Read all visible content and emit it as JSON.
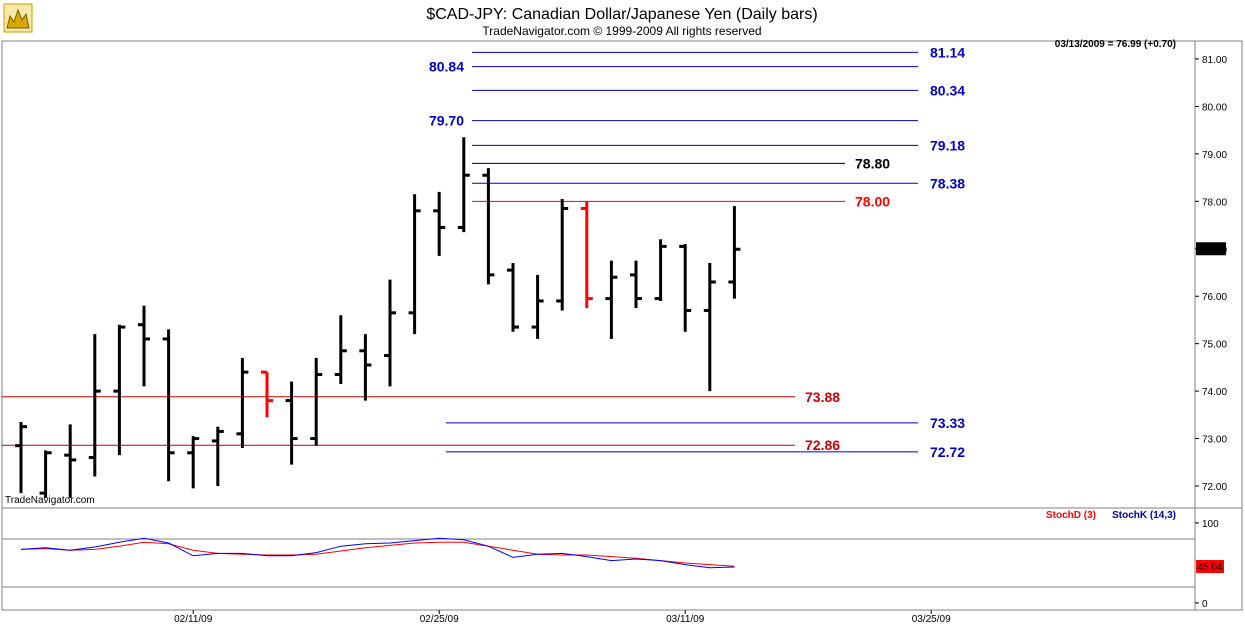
{
  "header": {
    "title": "$CAD-JPY:  Canadian Dollar/Japanese Yen  (Daily bars)",
    "copyright": "TradeNavigator.com © 1999-2009 All rights reserved",
    "last_quote": "03/13/2009 = 76.99 (+0.70)",
    "watermark": "TradeNavigator.com",
    "current_price_label": "76.99"
  },
  "colors": {
    "bar": "#000000",
    "bar_highlight": "#ff0000",
    "level_blue": "#0000cc",
    "level_red": "#cc0000",
    "level_black": "#000000",
    "stoch_d": "#ff0000",
    "stoch_k": "#0000ff"
  },
  "chart_data": [
    {
      "type": "ohlc",
      "title": "$CAD-JPY:  Canadian Dollar/Japanese Yen  (Daily bars)",
      "ylim": [
        71.6,
        81.4
      ],
      "y_ticks": [
        72.0,
        73.0,
        74.0,
        75.0,
        76.0,
        77.0,
        78.0,
        79.0,
        80.0,
        81.0
      ],
      "x_ticks": [
        "02/11/09",
        "02/25/09",
        "03/11/09",
        "03/25/09"
      ],
      "x_tick_index": [
        7,
        17,
        27,
        37
      ],
      "bars": [
        {
          "o": 72.85,
          "h": 73.35,
          "l": 71.85,
          "c": 73.25
        },
        {
          "o": 71.85,
          "h": 72.75,
          "l": 71.75,
          "c": 72.7
        },
        {
          "o": 72.65,
          "h": 73.3,
          "l": 71.75,
          "c": 72.55
        },
        {
          "o": 72.6,
          "h": 75.2,
          "l": 72.2,
          "c": 74.0
        },
        {
          "o": 74.0,
          "h": 75.4,
          "l": 72.65,
          "c": 75.35
        },
        {
          "o": 75.4,
          "h": 75.8,
          "l": 74.1,
          "c": 75.1
        },
        {
          "o": 75.1,
          "h": 75.3,
          "l": 72.1,
          "c": 72.7
        },
        {
          "o": 72.7,
          "h": 73.05,
          "l": 71.95,
          "c": 73.0
        },
        {
          "o": 72.95,
          "h": 73.25,
          "l": 72.0,
          "c": 73.15
        },
        {
          "o": 73.1,
          "h": 74.7,
          "l": 72.8,
          "c": 74.4,
          "highlight": false
        },
        {
          "o": 74.4,
          "h": 74.4,
          "l": 73.45,
          "c": 73.8,
          "highlight": true
        },
        {
          "o": 73.8,
          "h": 74.2,
          "l": 72.45,
          "c": 73.0
        },
        {
          "o": 73.0,
          "h": 74.7,
          "l": 72.85,
          "c": 74.35
        },
        {
          "o": 74.35,
          "h": 75.6,
          "l": 74.15,
          "c": 74.85
        },
        {
          "o": 74.85,
          "h": 75.2,
          "l": 73.8,
          "c": 74.55
        },
        {
          "o": 74.75,
          "h": 76.35,
          "l": 74.1,
          "c": 75.65
        },
        {
          "o": 75.65,
          "h": 78.15,
          "l": 75.2,
          "c": 77.8
        },
        {
          "o": 77.8,
          "h": 78.2,
          "l": 76.85,
          "c": 77.45
        },
        {
          "o": 77.45,
          "h": 79.35,
          "l": 77.35,
          "c": 78.55
        },
        {
          "o": 78.55,
          "h": 78.7,
          "l": 76.25,
          "c": 76.45
        },
        {
          "o": 76.55,
          "h": 76.7,
          "l": 75.25,
          "c": 75.35
        },
        {
          "o": 75.35,
          "h": 76.45,
          "l": 75.1,
          "c": 75.9
        },
        {
          "o": 75.9,
          "h": 78.05,
          "l": 75.7,
          "c": 77.85
        },
        {
          "o": 77.85,
          "h": 78.0,
          "l": 75.75,
          "c": 75.95,
          "highlight": true
        },
        {
          "o": 75.95,
          "h": 76.75,
          "l": 75.1,
          "c": 76.4
        },
        {
          "o": 76.45,
          "h": 76.75,
          "l": 75.75,
          "c": 75.95
        },
        {
          "o": 75.95,
          "h": 77.2,
          "l": 75.9,
          "c": 77.05
        },
        {
          "o": 77.05,
          "h": 77.1,
          "l": 75.25,
          "c": 75.7
        },
        {
          "o": 75.7,
          "h": 76.7,
          "l": 74.0,
          "c": 76.3
        },
        {
          "o": 76.3,
          "h": 77.9,
          "l": 75.95,
          "c": 76.99
        }
      ],
      "levels": [
        {
          "value": 81.14,
          "label": "81.14",
          "color": "#0000cc",
          "span": "upper"
        },
        {
          "value": 80.84,
          "label": "80.84",
          "color": "#0000cc",
          "span": "upper",
          "label_side": "left"
        },
        {
          "value": 80.34,
          "label": "80.34",
          "color": "#0000cc",
          "span": "upper"
        },
        {
          "value": 79.7,
          "label": "79.70",
          "color": "#0000cc",
          "span": "upper",
          "label_side": "left"
        },
        {
          "value": 79.18,
          "label": "79.18",
          "color": "#0000cc",
          "span": "upper"
        },
        {
          "value": 78.8,
          "label": "78.80",
          "color": "#000000",
          "span": "short"
        },
        {
          "value": 78.38,
          "label": "78.38",
          "color": "#0000cc",
          "span": "upper"
        },
        {
          "value": 78.0,
          "label": "78.00",
          "color": "#ff0000",
          "span": "short"
        },
        {
          "value": 73.88,
          "label": "73.88",
          "color": "#cc0000",
          "span": "full"
        },
        {
          "value": 73.33,
          "label": "73.33",
          "color": "#0000cc",
          "span": "lower"
        },
        {
          "value": 72.86,
          "label": "72.86",
          "color": "#cc0000",
          "span": "full"
        },
        {
          "value": 72.72,
          "label": "72.72",
          "color": "#0000cc",
          "span": "lower"
        }
      ]
    },
    {
      "type": "line",
      "title": "",
      "ylim": [
        0,
        100
      ],
      "y_ticks": [
        0,
        100
      ],
      "current_value_label": "45.04",
      "series": [
        {
          "name": "StochD (3)",
          "color": "#ff0000",
          "values": [
            67,
            68,
            66,
            67,
            71,
            76,
            74,
            66,
            62,
            61,
            60,
            60,
            61,
            65,
            69,
            72,
            75,
            76,
            76,
            71,
            66,
            61,
            60,
            60,
            58,
            56,
            53,
            50,
            48,
            46
          ]
        },
        {
          "name": "StochK (14,3)",
          "color": "#0000ff",
          "values": [
            67,
            69,
            66,
            70,
            76,
            81,
            75,
            59,
            62,
            62,
            59,
            59,
            63,
            71,
            74,
            75,
            78,
            81,
            79,
            71,
            57,
            61,
            62,
            58,
            53,
            55,
            53,
            48,
            44,
            45
          ]
        }
      ]
    }
  ]
}
